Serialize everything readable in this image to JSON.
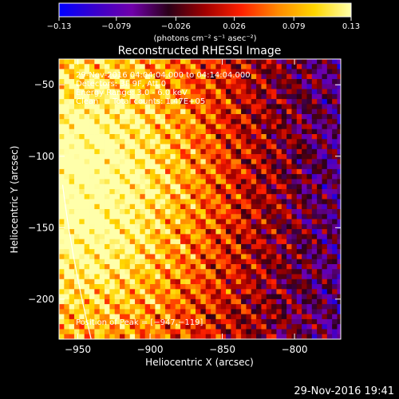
{
  "chart_data": {
    "type": "heatmap",
    "title": "Reconstructed RHESSI Image",
    "xlabel": "Heliocentric X (arcsec)",
    "ylabel": "Heliocentric Y (arcsec)",
    "xlim": [
      -963,
      -768
    ],
    "ylim": [
      -228,
      -32
    ],
    "x_ticks": [
      -950,
      -900,
      -850,
      -800
    ],
    "x_tick_labels": [
      "−950",
      "−900",
      "−850",
      "−800"
    ],
    "y_ticks": [
      -50,
      -100,
      -150,
      -200
    ],
    "y_tick_labels": [
      "−50",
      "−100",
      "−150",
      "−200"
    ],
    "colorbar": {
      "unit_label": "(photons cm⁻² s⁻¹ asec⁻²)",
      "range": [
        -0.13,
        0.13
      ],
      "ticks": [
        -0.13,
        -0.079,
        -0.026,
        0.026,
        0.079,
        0.13
      ],
      "tick_labels": [
        "−0.13",
        "−0.079",
        "−0.026",
        "0.026",
        "0.079",
        "0.13"
      ],
      "colormap": [
        "#0000ff",
        "#3a00cc",
        "#7000aa",
        "#2a0018",
        "#a00000",
        "#ff2000",
        "#ff8a00",
        "#ffd600",
        "#ffffaa"
      ]
    },
    "annotations": [
      "29-Nov-2016 04:04:04.000 to 04:14:04.000",
      "Detectors: 3F 9F, Att 0",
      "Energy Range: 3.0 - 6.0 keV",
      "Clean",
      "Total counts: 1.47E+05"
    ],
    "peak_label": "Position of Peak = [−947,−119]",
    "peak_position": [
      -947,
      -119
    ],
    "limb_color": "#ffffff"
  },
  "footer": {
    "timestamp": "29-Nov-2016 19:41"
  }
}
